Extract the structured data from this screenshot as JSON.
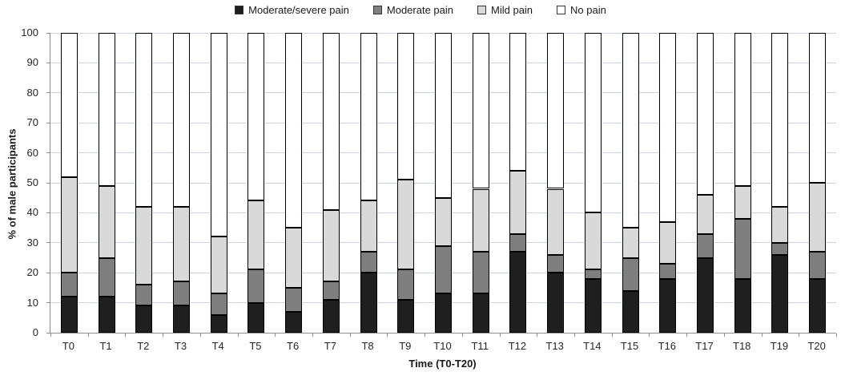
{
  "chart_data": {
    "type": "bar",
    "stacked": true,
    "title": "",
    "xlabel": "Time (T0-T20)",
    "ylabel": "% of male participants",
    "ylim": [
      0,
      100
    ],
    "ytick_step": 10,
    "grid": true,
    "legend_position": "top",
    "categories": [
      "T0",
      "T1",
      "T2",
      "T3",
      "T4",
      "T5",
      "T6",
      "T7",
      "T8",
      "T9",
      "T10",
      "T11",
      "T12",
      "T13",
      "T14",
      "T15",
      "T16",
      "T17",
      "T18",
      "T19",
      "T20"
    ],
    "series": [
      {
        "name": "Moderate/severe pain",
        "color": "#1f1f1f",
        "values": [
          12,
          12,
          9,
          9,
          6,
          10,
          7,
          11,
          20,
          11,
          13,
          13,
          27,
          20,
          18,
          14,
          18,
          25,
          18,
          26,
          18
        ]
      },
      {
        "name": "Moderate pain",
        "color": "#7f7f7f",
        "values": [
          8,
          13,
          7,
          8,
          7,
          11,
          8,
          6,
          7,
          10,
          16,
          14,
          6,
          6,
          3,
          11,
          5,
          8,
          20,
          4,
          9
        ]
      },
      {
        "name": "Mild pain",
        "color": "#d9d9d9",
        "values": [
          32,
          24,
          26,
          25,
          19,
          23,
          20,
          24,
          17,
          30,
          16,
          21,
          21,
          22,
          19,
          10,
          14,
          13,
          11,
          12,
          23
        ]
      },
      {
        "name": "No pain",
        "color": "#ffffff",
        "values": [
          48,
          51,
          58,
          58,
          68,
          56,
          65,
          59,
          56,
          49,
          55,
          52,
          46,
          52,
          60,
          65,
          63,
          54,
          51,
          58,
          50
        ]
      }
    ]
  },
  "colors": {
    "gridline": "#c8d6ea",
    "axis_line": "#8c8c8c",
    "segment_border": "#000000",
    "text": "#262626"
  }
}
